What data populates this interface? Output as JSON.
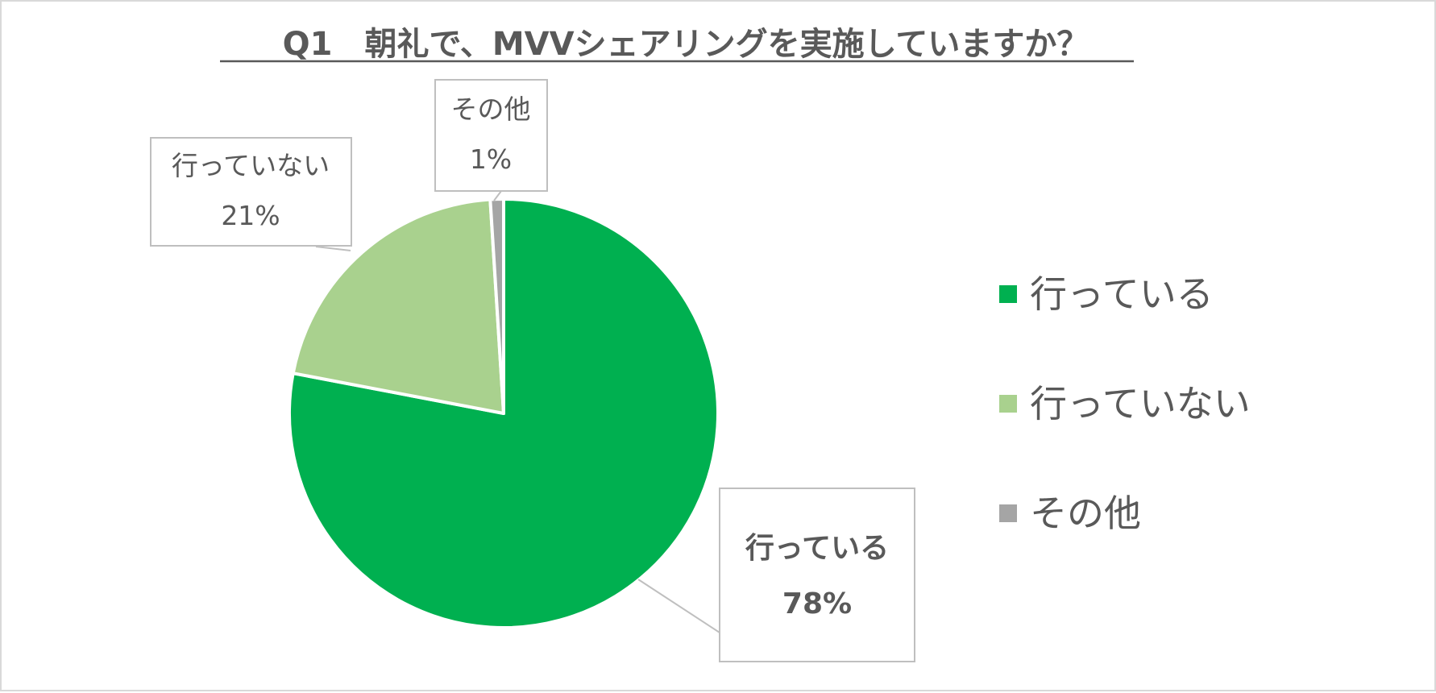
{
  "chart_data": {
    "type": "pie",
    "title": "Q1　朝礼で、MVVシェアリングを実施していますか？",
    "categories": [
      "行っている",
      "行っていない",
      "その他"
    ],
    "values": [
      78,
      21,
      1
    ],
    "value_labels": [
      "78%",
      "21%",
      "1%"
    ],
    "colors": [
      "#00B050",
      "#A9D18E",
      "#A5A5A5"
    ],
    "legend_position": "right",
    "start_angle": "12 o'clock, clockwise"
  }
}
